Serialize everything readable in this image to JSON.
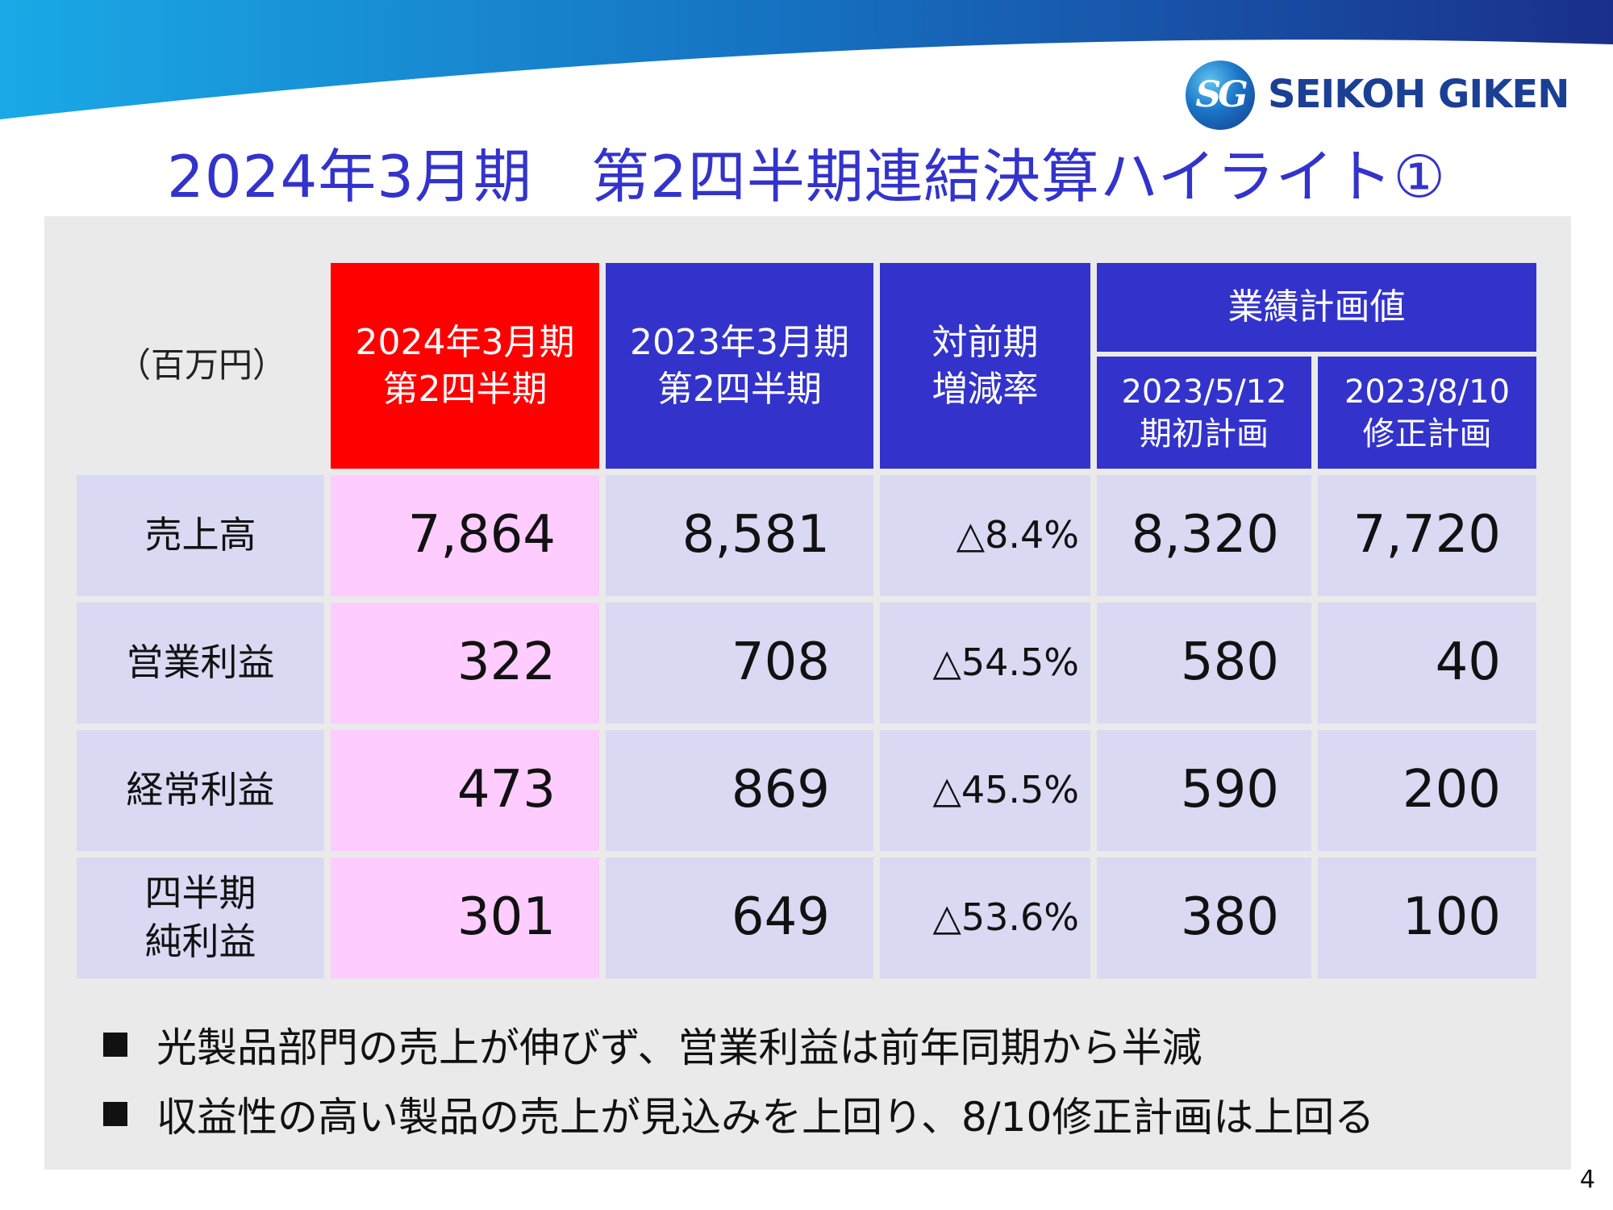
{
  "brand": {
    "logo_mark": "SG",
    "name": "SEIKOH GIKEN"
  },
  "title": "2024年3月期　第2四半期連結決算ハイライト①",
  "table": {
    "unit_label": "（百万円）",
    "headers": {
      "current": [
        "2024年3月期",
        "第2四半期"
      ],
      "previous": [
        "2023年3月期",
        "第2四半期"
      ],
      "change": [
        "対前期",
        "増減率"
      ],
      "plan_group": "業績計画値",
      "plan_initial": [
        "2023/5/12",
        "期初計画"
      ],
      "plan_revised": [
        "2023/8/10",
        "修正計画"
      ]
    },
    "rows": [
      {
        "label": [
          "売上高"
        ],
        "current": "7,864",
        "previous": "8,581",
        "change": "△8.4%",
        "plan_initial": "8,320",
        "plan_revised": "7,720"
      },
      {
        "label": [
          "営業利益"
        ],
        "current": "322",
        "previous": "708",
        "change": "△54.5%",
        "plan_initial": "580",
        "plan_revised": "40"
      },
      {
        "label": [
          "経常利益"
        ],
        "current": "473",
        "previous": "869",
        "change": "△45.5%",
        "plan_initial": "590",
        "plan_revised": "200"
      },
      {
        "label": [
          "四半期",
          "純利益"
        ],
        "current": "301",
        "previous": "649",
        "change": "△53.6%",
        "plan_initial": "380",
        "plan_revised": "100"
      }
    ]
  },
  "bullets": [
    "光製品部門の売上が伸びず、営業利益は前年同期から半減",
    "収益性の高い製品の売上が見込みを上回り、8/10修正計画は上回る"
  ],
  "page_number": "4",
  "colors": {
    "title": "#3333cc",
    "header_blue": "#3333cc",
    "header_current": "#ff0000",
    "cell_current": "#ffccff",
    "cell_other": "#d9d9f3",
    "panel": "#eaeaea",
    "brand": "#1b3f94"
  }
}
